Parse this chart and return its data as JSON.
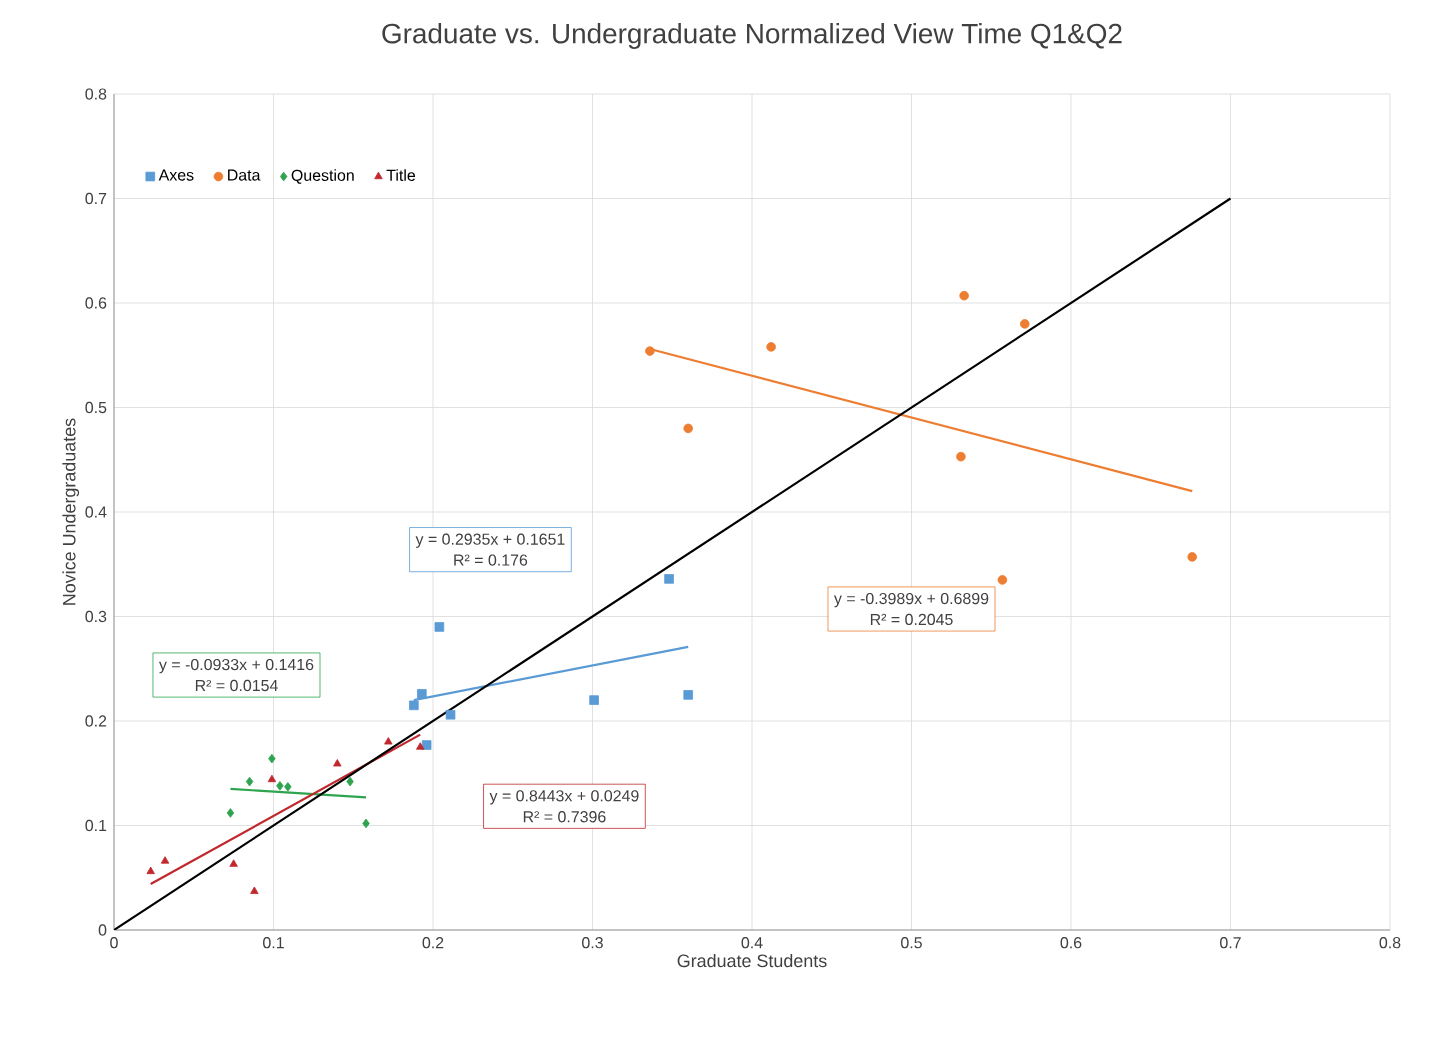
{
  "chart_data": {
    "type": "scatter",
    "title": "Graduate vs. Undergraduate Normalized View Time Q1&Q2",
    "xlabel": "Graduate Students",
    "ylabel": "Novice Undergraduates",
    "xlim": [
      0,
      0.8
    ],
    "ylim": [
      0,
      0.8
    ],
    "xticks": [
      0,
      0.1,
      0.2,
      0.3,
      0.4,
      0.5,
      0.6,
      0.7,
      0.8
    ],
    "yticks": [
      0,
      0.1,
      0.2,
      0.3,
      0.4,
      0.5,
      0.6,
      0.7,
      0.8
    ],
    "grid": true,
    "legend": "top left",
    "series": [
      {
        "name": "Axes",
        "color": "#5b9bd5",
        "marker": "square",
        "x": [
          0.204,
          0.193,
          0.188,
          0.211,
          0.196,
          0.301,
          0.36,
          0.348
        ],
        "values": [
          0.29,
          0.226,
          0.215,
          0.206,
          0.177,
          0.22,
          0.225,
          0.336
        ]
      },
      {
        "name": "Data",
        "color": "#ed7d31",
        "marker": "circle",
        "x": [
          0.336,
          0.412,
          0.36,
          0.533,
          0.571,
          0.531,
          0.557,
          0.676
        ],
        "values": [
          0.554,
          0.558,
          0.48,
          0.607,
          0.58,
          0.453,
          0.335,
          0.357
        ]
      },
      {
        "name": "Question",
        "color": "#2ea44f",
        "marker": "diamond",
        "x": [
          0.099,
          0.085,
          0.104,
          0.109,
          0.148,
          0.073,
          0.158
        ],
        "values": [
          0.164,
          0.142,
          0.138,
          0.137,
          0.142,
          0.112,
          0.102
        ]
      },
      {
        "name": "Title",
        "color": "#c0282d",
        "marker": "triangle",
        "x": [
          0.023,
          0.032,
          0.075,
          0.088,
          0.099,
          0.14,
          0.172,
          0.192
        ],
        "values": [
          0.056,
          0.066,
          0.063,
          0.037,
          0.144,
          0.159,
          0.18,
          0.175
        ]
      },
      {
        "type": "line",
        "color": "#5b9bd5",
        "x": [
          0.188,
          0.36
        ],
        "values": [
          0.22,
          0.271
        ]
      },
      {
        "type": "line",
        "color": "#ed7d31",
        "x": [
          0.336,
          0.676
        ],
        "values": [
          0.556,
          0.42
        ]
      },
      {
        "type": "line",
        "color": "#2ea44f",
        "x": [
          0.073,
          0.158
        ],
        "values": [
          0.135,
          0.127
        ]
      },
      {
        "type": "line",
        "color": "#c0282d",
        "x": [
          0.023,
          0.192
        ],
        "values": [
          0.044,
          0.187
        ]
      },
      {
        "type": "line",
        "color": "#000000",
        "x": [
          0,
          0.7
        ],
        "values": [
          0,
          0.7
        ]
      }
    ],
    "annotations": [
      "y = 0.2935x + 0.1651",
      "R² = 0.176",
      "y = -0.3989x + 0.6899",
      "R² = 0.2045",
      "y = -0.0933x + 0.1416",
      "R² = 0.0154",
      "y = 0.8443x + 0.0249",
      "R² = 0.7396"
    ]
  }
}
